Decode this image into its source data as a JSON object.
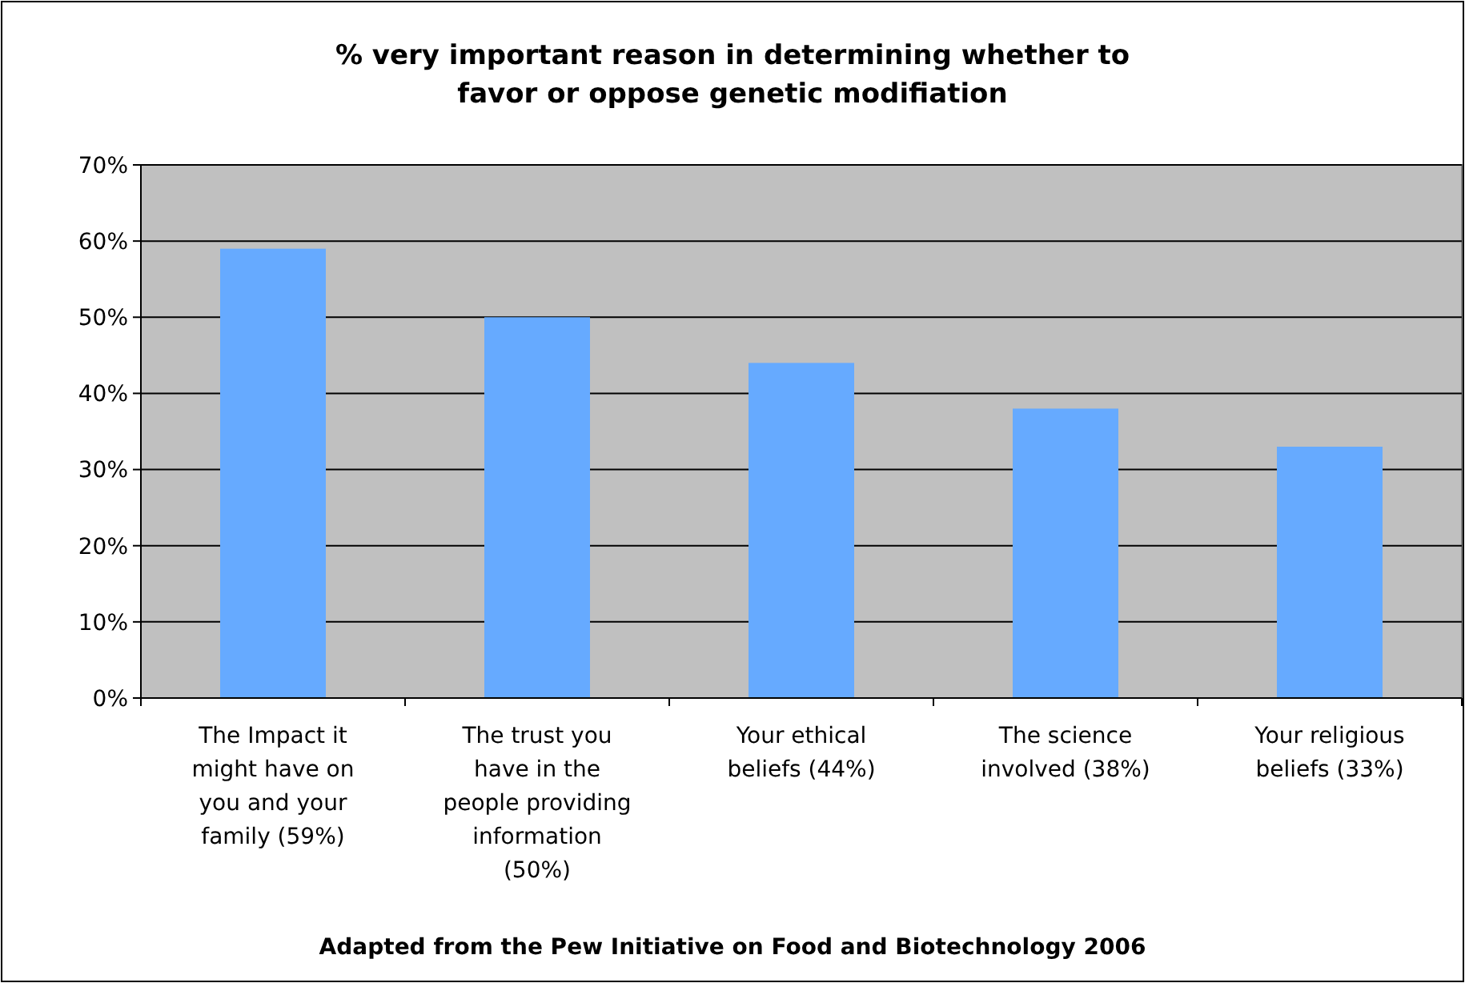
{
  "chart_data": {
    "type": "bar",
    "title": "% very important reason in determining whether to favor or oppose genetic modifiation",
    "categories": [
      "The Impact it might have on you and your family (59%)",
      "The trust you have in the people providing information (50%)",
      "Your ethical beliefs (44%)",
      "The science involved (38%)",
      "Your religious beliefs (33%)"
    ],
    "values": [
      59,
      50,
      44,
      38,
      33
    ],
    "color": "#66aaff",
    "ylim": [
      0,
      70
    ],
    "yticks": [
      {
        "value": 0,
        "label": "0%"
      },
      {
        "value": 10,
        "label": "10%"
      },
      {
        "value": 20,
        "label": "20%"
      },
      {
        "value": 30,
        "label": "30%"
      },
      {
        "value": 40,
        "label": "40%"
      },
      {
        "value": 50,
        "label": "50%"
      },
      {
        "value": 60,
        "label": "60%"
      },
      {
        "value": 70,
        "label": "70%"
      }
    ],
    "grid": "y",
    "annotations": [
      "Adapted from the Pew Initiative on Food and Biotechnology 2006"
    ]
  }
}
